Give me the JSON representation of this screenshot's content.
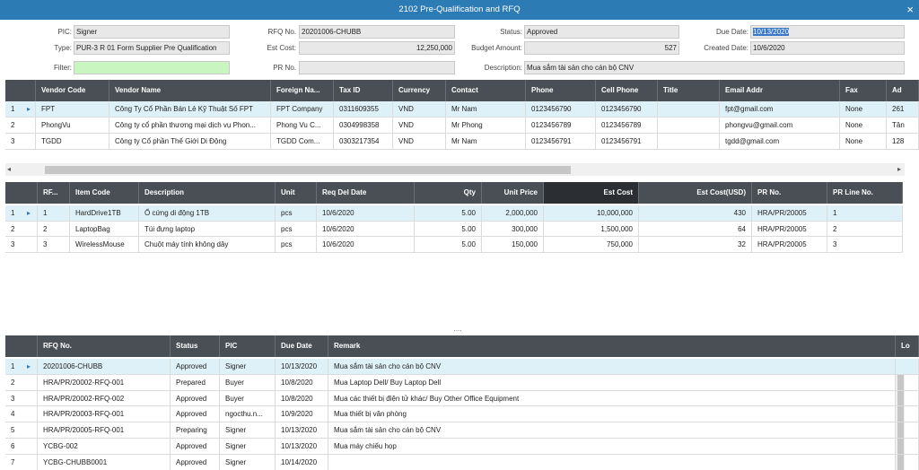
{
  "window": {
    "title": "2102 Pre-Qualification and RFQ",
    "close": "×"
  },
  "form": {
    "fields": [
      {
        "label": "PIC:",
        "value": "Signer"
      },
      {
        "label": "RFQ No.",
        "value": "20201006-CHUBB"
      },
      {
        "label": "Status:",
        "value": "Approved"
      },
      {
        "label": "Due Date:",
        "value": "10/13/2020"
      },
      {
        "label": "Type:",
        "value": "PUR-3 R 01 Form Supplier Pre Qualification"
      },
      {
        "label": "Est Cost:",
        "value": "12,250,000"
      },
      {
        "label": "Budget Amount:",
        "value": "527"
      },
      {
        "label": "Created Date:",
        "value": "10/6/2020"
      },
      {
        "label": "Filter:",
        "value": null
      },
      {
        "label": "PR No.",
        "value": null
      },
      {
        "label": "Description:",
        "value": "Mua sắm tài sản cho cán bộ CNV"
      }
    ]
  },
  "vendors": {
    "columns": [
      "Vendor Code",
      "Vendor Name",
      "Foreign Na...",
      "Tax ID",
      "Currency",
      "Contact",
      "Phone",
      "Cell Phone",
      "Title",
      "Email Addr",
      "Fax",
      "Ad"
    ],
    "rows": [
      {
        "no": "1",
        "cells": [
          "FPT",
          "Công Ty Cổ Phần Bán Lẻ Kỹ Thuật Số FPT",
          "FPT Company",
          "0311609355",
          "VND",
          "Mr Nam",
          "0123456790",
          "0123456790",
          null,
          "fpt@gmail.com",
          "None",
          "261"
        ]
      },
      {
        "no": "2",
        "cells": [
          "PhongVu",
          "Công ty cổ phần thương mại dịch vụ Phon...",
          "Phong Vu C...",
          "0304998358",
          "VND",
          "Mr Phong",
          "0123456789",
          "0123456789",
          null,
          "phongvu@gmail.com",
          "None",
          "Tân"
        ]
      },
      {
        "no": "3",
        "cells": [
          "TGDD",
          "Công ty Cổ phần Thế Giới Di Động",
          "TGDD Com...",
          "0303217354",
          "VND",
          "Mr Nam",
          "0123456791",
          "0123456791",
          null,
          "tgdd@gmail.com",
          "None",
          "128"
        ]
      }
    ]
  },
  "scroll": {
    "left": "◂",
    "right": "▸"
  },
  "items": {
    "columns": [
      "RF...",
      "Item Code",
      "Description",
      "Unit",
      "Req Del Date",
      "Qty",
      "Unit Price",
      "Est Cost",
      "Est Cost(USD)",
      "PR No.",
      "PR Line No."
    ],
    "rows": [
      {
        "no": "1",
        "cells": [
          "1",
          "HardDrive1TB",
          "Ổ cứng  di động 1TB",
          "pcs",
          "10/6/2020",
          "5.00",
          "2,000,000",
          "10,000,000",
          "430",
          "HRA/PR/20005",
          "1"
        ]
      },
      {
        "no": "2",
        "cells": [
          "2",
          "LaptopBag",
          "Túi đựng laptop",
          "pcs",
          "10/6/2020",
          "5.00",
          "300,000",
          "1,500,000",
          "64",
          "HRA/PR/20005",
          "2"
        ]
      },
      {
        "no": "3",
        "cells": [
          "3",
          "WirelessMouse",
          "Chuột máy tính không dây",
          "pcs",
          "10/6/2020",
          "5.00",
          "150,000",
          "750,000",
          "32",
          "HRA/PR/20005",
          "3"
        ]
      }
    ]
  },
  "splitter": "....",
  "rfqs": {
    "columns": [
      "RFQ No.",
      "Status",
      "PIC",
      "Due Date",
      "Remark",
      "Lo"
    ],
    "rows": [
      {
        "no": "1",
        "cells": [
          "20201006-CHUBB",
          "Approved",
          "Signer",
          "10/13/2020",
          "Mua sắm tài sản cho cán bộ CNV",
          null
        ]
      },
      {
        "no": "2",
        "cells": [
          "HRA/PR/20002-RFQ-001",
          "Prepared",
          "Buyer",
          "10/8/2020",
          "Mua Laptop Dell/ Buy Laptop Dell",
          null
        ]
      },
      {
        "no": "3",
        "cells": [
          "HRA/PR/20002-RFQ-002",
          "Approved",
          "Buyer",
          "10/8/2020",
          "Mua các thiết bị điện tử khác/ Buy Other Office Equipment",
          null
        ]
      },
      {
        "no": "4",
        "cells": [
          "HRA/PR/20003-RFQ-001",
          "Approved",
          "ngocthu.n...",
          "10/9/2020",
          "Mua thiết bị văn phòng",
          null
        ]
      },
      {
        "no": "5",
        "cells": [
          "HRA/PR/20005-RFQ-001",
          "Preparing",
          "Signer",
          "10/13/2020",
          "Mua sắm tài sản cho cán bộ CNV",
          null
        ]
      },
      {
        "no": "6",
        "cells": [
          "YCBG-002",
          "Approved",
          "Signer",
          "10/13/2020",
          "Mua máy chiếu họp",
          null
        ]
      },
      {
        "no": "7",
        "cells": [
          "YCBG-CHUBB0001",
          "Approved",
          "Signer",
          "10/14/2020",
          null,
          null
        ]
      }
    ]
  }
}
